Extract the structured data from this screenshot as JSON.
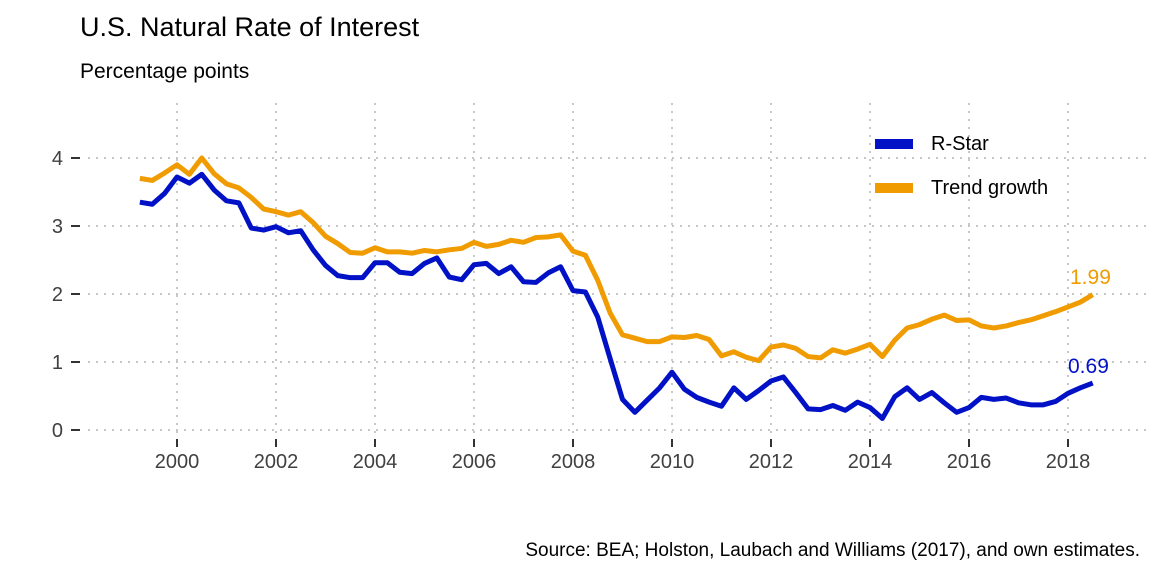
{
  "header": {
    "title": "U.S. Natural Rate of Interest",
    "subtitle": "Percentage points"
  },
  "footer": {
    "source": "Source: BEA; Holston, Laubach and Williams (2017), and own estimates."
  },
  "legend": {
    "items": [
      {
        "label": "R-Star",
        "color": "#0011C6"
      },
      {
        "label": "Trend growth",
        "color": "#F09B00"
      }
    ]
  },
  "colors": {
    "grid": "#C8C8C8",
    "tick_mark": "#333333",
    "tick_label": "#404040",
    "background": "#FFFFFF"
  },
  "chart_data": {
    "type": "line",
    "title": "U.S. Natural Rate of Interest",
    "subtitle": "Percentage points",
    "xlabel": "",
    "ylabel": "Percentage points",
    "grid": "dotted",
    "legend_position": "upper-right-inside",
    "x_ticks": [
      2000,
      2002,
      2004,
      2006,
      2008,
      2010,
      2012,
      2014,
      2016,
      2018
    ],
    "y_ticks": [
      0,
      1,
      2,
      3,
      4
    ],
    "xlim": [
      1998.2,
      2019.6
    ],
    "ylim": [
      -0.1,
      4.8
    ],
    "x": [
      1999.25,
      1999.5,
      1999.75,
      2000,
      2000.25,
      2000.5,
      2000.75,
      2001,
      2001.25,
      2001.5,
      2001.75,
      2002,
      2002.25,
      2002.5,
      2002.75,
      2003,
      2003.25,
      2003.5,
      2003.75,
      2004,
      2004.25,
      2004.5,
      2004.75,
      2005,
      2005.25,
      2005.5,
      2005.75,
      2006,
      2006.25,
      2006.5,
      2006.75,
      2007,
      2007.25,
      2007.5,
      2007.75,
      2008,
      2008.25,
      2008.5,
      2008.75,
      2009,
      2009.25,
      2009.5,
      2009.75,
      2010,
      2010.25,
      2010.5,
      2010.75,
      2011,
      2011.25,
      2011.5,
      2011.75,
      2012,
      2012.25,
      2012.5,
      2012.75,
      2013,
      2013.25,
      2013.5,
      2013.75,
      2014,
      2014.25,
      2014.5,
      2014.75,
      2015,
      2015.25,
      2015.5,
      2015.75,
      2016,
      2016.25,
      2016.5,
      2016.75,
      2017,
      2017.25,
      2017.5,
      2017.75,
      2018,
      2018.25,
      2018.5
    ],
    "series": [
      {
        "name": "R-Star",
        "color": "#0011C6",
        "end_label": "0.69",
        "values": [
          3.35,
          3.32,
          3.48,
          3.72,
          3.63,
          3.76,
          3.53,
          3.37,
          3.34,
          2.97,
          2.94,
          2.99,
          2.9,
          2.93,
          2.65,
          2.42,
          2.27,
          2.24,
          2.24,
          2.46,
          2.46,
          2.32,
          2.3,
          2.45,
          2.53,
          2.25,
          2.21,
          2.43,
          2.45,
          2.3,
          2.4,
          2.18,
          2.17,
          2.31,
          2.4,
          2.05,
          2.03,
          1.66,
          1.05,
          0.45,
          0.26,
          0.44,
          0.62,
          0.85,
          0.6,
          0.48,
          0.41,
          0.35,
          0.62,
          0.45,
          0.58,
          0.72,
          0.78,
          0.55,
          0.31,
          0.3,
          0.36,
          0.29,
          0.41,
          0.33,
          0.17,
          0.49,
          0.62,
          0.45,
          0.55,
          0.4,
          0.26,
          0.33,
          0.48,
          0.45,
          0.47,
          0.4,
          0.37,
          0.37,
          0.42,
          0.54,
          0.62,
          0.69
        ]
      },
      {
        "name": "Trend growth",
        "color": "#F09B00",
        "end_label": "1.99",
        "values": [
          3.7,
          3.67,
          3.78,
          3.9,
          3.76,
          4.0,
          3.77,
          3.62,
          3.56,
          3.42,
          3.25,
          3.21,
          3.16,
          3.21,
          3.05,
          2.85,
          2.74,
          2.61,
          2.6,
          2.68,
          2.62,
          2.62,
          2.6,
          2.64,
          2.62,
          2.65,
          2.67,
          2.76,
          2.7,
          2.73,
          2.79,
          2.76,
          2.83,
          2.84,
          2.87,
          2.63,
          2.57,
          2.2,
          1.72,
          1.4,
          1.35,
          1.3,
          1.3,
          1.37,
          1.36,
          1.39,
          1.33,
          1.09,
          1.15,
          1.07,
          1.02,
          1.22,
          1.25,
          1.2,
          1.08,
          1.06,
          1.18,
          1.13,
          1.19,
          1.26,
          1.08,
          1.32,
          1.5,
          1.55,
          1.63,
          1.69,
          1.61,
          1.62,
          1.53,
          1.5,
          1.53,
          1.58,
          1.62,
          1.68,
          1.74,
          1.81,
          1.88,
          1.99
        ]
      }
    ]
  }
}
